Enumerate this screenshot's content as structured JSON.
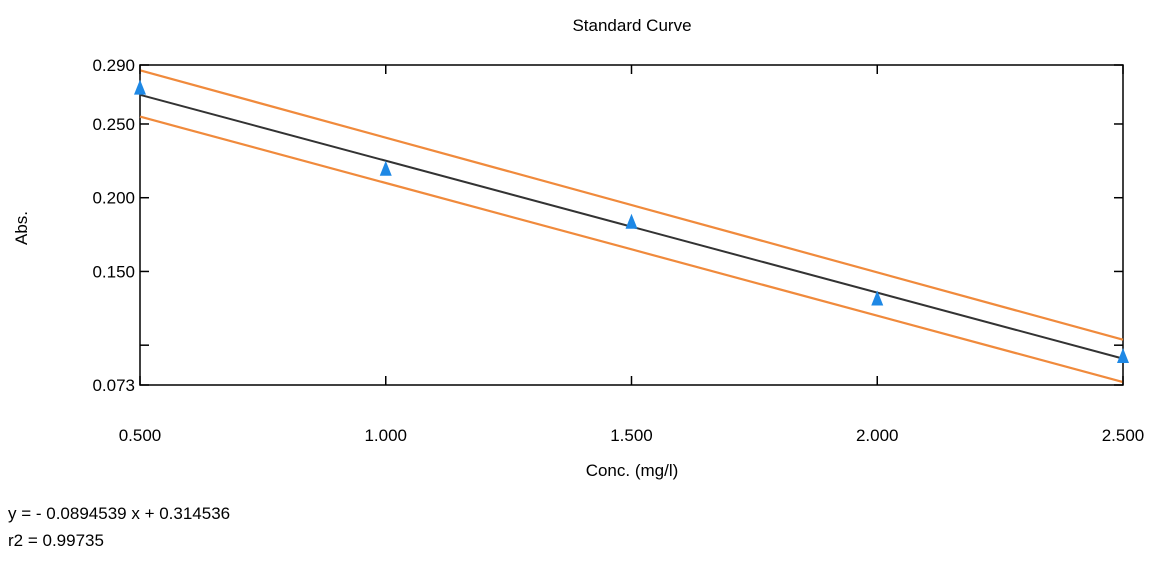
{
  "chart_data": {
    "type": "scatter",
    "title": "Standard Curve",
    "xlabel": "Conc. (mg/l)",
    "ylabel": "Abs.",
    "xlim": [
      0.5,
      2.5
    ],
    "ylim": [
      0.073,
      0.29
    ],
    "x_ticks": [
      0.5,
      1.0,
      1.5,
      2.0,
      2.5
    ],
    "x_tick_labels": [
      "0.500",
      "1.000",
      "1.500",
      "2.000",
      "2.500"
    ],
    "y_ticks": [
      0.073,
      0.15,
      0.2,
      0.25,
      0.29
    ],
    "y_tick_labels": [
      "0.073",
      "0.150",
      "0.200",
      "0.250",
      "0.290"
    ],
    "y_minor_ticks": [
      0.1
    ],
    "grid": false,
    "series": [
      {
        "kind": "points",
        "marker": "triangle",
        "color": "#1e88e5",
        "x": [
          0.5,
          1.0,
          1.5,
          2.0,
          2.5
        ],
        "y": [
          0.274,
          0.219,
          0.183,
          0.131,
          0.092
        ]
      },
      {
        "kind": "fit-line",
        "color": "#333333",
        "x": [
          0.5,
          2.5
        ],
        "y": [
          0.2698,
          0.0909
        ]
      },
      {
        "kind": "upper-confidence",
        "color": "#f08a3c",
        "x": [
          0.5,
          2.5
        ],
        "y": [
          0.2864,
          0.1037
        ]
      },
      {
        "kind": "lower-confidence",
        "color": "#f08a3c",
        "x": [
          0.5,
          2.5
        ],
        "y": [
          0.255,
          0.075
        ]
      }
    ],
    "annotations": {
      "equation": "y = - 0.0894539 x + 0.314536",
      "r2": "r2 = 0.99735"
    }
  }
}
